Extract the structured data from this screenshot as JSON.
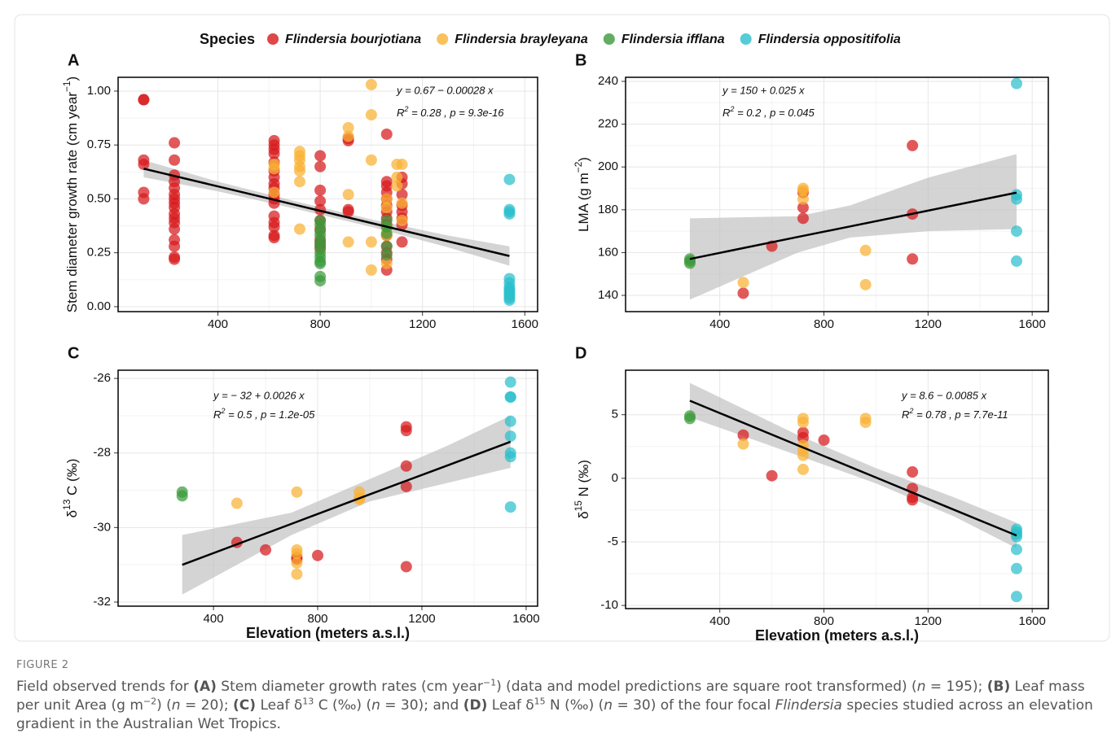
{
  "chart_data": [
    {
      "type": "scatter",
      "panel": "A",
      "legend_title": "Species",
      "ylabel": [
        "Stem diameter growth rate (cm year",
        "−1",
        ")"
      ],
      "equation": "y = 0.67 − 0.00028 x",
      "r2": [
        "R",
        "2",
        " = 0.28 , p = 9.3e-16"
      ],
      "xlim": [
        10,
        1650
      ],
      "ylim": [
        -0.023,
        1.064
      ],
      "xticks": [
        400,
        800,
        1200,
        1600
      ],
      "yticks": [
        {
          "value": 0,
          "label": "0.00"
        },
        {
          "value": 0.25,
          "label": "0.25"
        },
        {
          "value": 0.5,
          "label": "0.50"
        },
        {
          "value": 0.75,
          "label": "0.75"
        },
        {
          "value": 1,
          "label": "1.00"
        }
      ],
      "grid": true,
      "series": [
        {
          "name": "Flindersia bourjotiana",
          "color": "#d7191c",
          "x": [
            110,
            110,
            110,
            110,
            110,
            110,
            230,
            230,
            230,
            230,
            230,
            230,
            230,
            230,
            230,
            230,
            230,
            230,
            230,
            230,
            230,
            230,
            230,
            620,
            620,
            620,
            620,
            620,
            620,
            620,
            620,
            620,
            620,
            620,
            620,
            620,
            620,
            620,
            620,
            620,
            800,
            800,
            800,
            800,
            800,
            800,
            800,
            800,
            800,
            800,
            910,
            910,
            910,
            910,
            1060,
            1060,
            1060,
            1060,
            1060,
            1060,
            1060,
            1060,
            1060,
            1060,
            1060,
            1060,
            1060,
            1060,
            1120,
            1120,
            1120,
            1120,
            1120,
            1120,
            1120,
            1120
          ],
          "values": [
            0.96,
            0.96,
            0.68,
            0.66,
            0.53,
            0.5,
            0.76,
            0.68,
            0.61,
            0.58,
            0.55,
            0.52,
            0.5,
            0.48,
            0.46,
            0.43,
            0.41,
            0.39,
            0.36,
            0.31,
            0.28,
            0.23,
            0.22,
            0.77,
            0.75,
            0.73,
            0.71,
            0.67,
            0.63,
            0.6,
            0.57,
            0.55,
            0.52,
            0.5,
            0.48,
            0.42,
            0.39,
            0.37,
            0.33,
            0.32,
            0.7,
            0.65,
            0.54,
            0.49,
            0.45,
            0.4,
            0.36,
            0.31,
            0.29,
            0.27,
            0.77,
            0.78,
            0.45,
            0.44,
            0.8,
            0.58,
            0.56,
            0.53,
            0.5,
            0.47,
            0.44,
            0.41,
            0.38,
            0.33,
            0.28,
            0.25,
            0.22,
            0.17,
            0.6,
            0.57,
            0.52,
            0.47,
            0.44,
            0.41,
            0.38,
            0.3
          ]
        },
        {
          "name": "Flindersia brayleyana",
          "color": "#f9b233",
          "x": [
            620,
            620,
            620,
            720,
            720,
            720,
            720,
            720,
            720,
            720,
            910,
            910,
            910,
            910,
            1000,
            1000,
            1000,
            1000,
            1000,
            1060,
            1060,
            1060,
            1060,
            1060,
            1100,
            1100,
            1100,
            1120,
            1120,
            1120
          ],
          "values": [
            0.66,
            0.64,
            0.53,
            0.72,
            0.7,
            0.68,
            0.65,
            0.63,
            0.58,
            0.36,
            0.83,
            0.79,
            0.52,
            0.3,
            1.03,
            0.89,
            0.68,
            0.3,
            0.17,
            0.5,
            0.46,
            0.37,
            0.33,
            0.2,
            0.66,
            0.6,
            0.56,
            0.66,
            0.48,
            0.4
          ]
        },
        {
          "name": "Flindersia ifflana",
          "color": "#3a9a3a",
          "x": [
            800,
            800,
            800,
            800,
            800,
            800,
            800,
            800,
            800,
            800,
            800,
            800,
            1060,
            1060,
            1060,
            1060,
            1060
          ],
          "values": [
            0.4,
            0.38,
            0.35,
            0.33,
            0.3,
            0.28,
            0.25,
            0.23,
            0.21,
            0.2,
            0.14,
            0.12,
            0.4,
            0.37,
            0.34,
            0.28,
            0.24
          ]
        },
        {
          "name": "Flindersia oppositifolia",
          "color": "#2bbfcc",
          "x": [
            1540,
            1540,
            1540,
            1540,
            1540,
            1540,
            1540,
            1540,
            1540,
            1540,
            1540,
            1540,
            1540
          ],
          "values": [
            0.59,
            0.45,
            0.44,
            0.43,
            0.13,
            0.11,
            0.09,
            0.08,
            0.07,
            0.06,
            0.05,
            0.04,
            0.03
          ]
        }
      ],
      "fit": {
        "x": [
          110,
          400,
          700,
          1000,
          1300,
          1540
        ],
        "y": [
          0.64,
          0.558,
          0.473,
          0.388,
          0.303,
          0.235
        ],
        "lower": [
          0.6,
          0.535,
          0.455,
          0.37,
          0.275,
          0.19
        ],
        "upper": [
          0.68,
          0.58,
          0.49,
          0.405,
          0.33,
          0.28
        ]
      }
    },
    {
      "type": "scatter",
      "panel": "B",
      "ylabel": [
        "LMA (g m",
        "−2",
        ")"
      ],
      "equation": "y = 150 + 0.025 x",
      "r2": [
        "R",
        "2",
        " = 0.2 , p = 0.045"
      ],
      "xlim": [
        38,
        1662
      ],
      "ylim": [
        132.4,
        241.9
      ],
      "xticks": [
        400,
        800,
        1200,
        1600
      ],
      "yticks": [
        140,
        160,
        180,
        200,
        220,
        240
      ],
      "grid": true,
      "series": [
        {
          "color": "#d7191c",
          "x": [
            490,
            600,
            720,
            720,
            720,
            1140,
            1140,
            1140
          ],
          "values": [
            141,
            163,
            188,
            181,
            176,
            210,
            178,
            157
          ]
        },
        {
          "color": "#f9b233",
          "x": [
            490,
            720,
            720,
            720,
            960,
            960
          ],
          "values": [
            146,
            190,
            189,
            185,
            161,
            145
          ]
        },
        {
          "color": "#3a9a3a",
          "x": [
            285,
            285,
            285
          ],
          "values": [
            157,
            156,
            155
          ]
        },
        {
          "color": "#2bbfcc",
          "x": [
            1540,
            1540,
            1540,
            1540,
            1540
          ],
          "values": [
            239,
            187,
            185,
            170,
            156
          ]
        }
      ],
      "fit": {
        "x": [
          285,
          700,
          900,
          1200,
          1540
        ],
        "y": [
          157,
          167.3,
          172.2,
          179.6,
          188
        ],
        "lower": [
          138,
          160,
          167,
          170,
          171
        ],
        "upper": [
          176,
          177,
          182,
          195,
          206
        ]
      }
    },
    {
      "type": "scatter",
      "panel": "C",
      "ylabel": [
        "δ",
        "13",
        " C (‰)"
      ],
      "xlabel": "Elevation (meters a.s.l.)",
      "equation": "y = − 32 + 0.0026 x",
      "r2": [
        "R",
        "2",
        " = 0.5 , p = 1.2e-05"
      ],
      "xlim": [
        34,
        1644
      ],
      "ylim": [
        -32.11,
        -25.78
      ],
      "xticks": [
        400,
        800,
        1200,
        1600
      ],
      "yticks": [
        -32,
        -30,
        -28,
        -26
      ],
      "grid": true,
      "series": [
        {
          "color": "#d7191c",
          "x": [
            490,
            600,
            720,
            720,
            800,
            1140,
            1140,
            1140,
            1140,
            1140
          ],
          "values": [
            -30.4,
            -30.6,
            -30.8,
            -30.85,
            -30.75,
            -27.3,
            -27.4,
            -28.35,
            -28.9,
            -31.05
          ]
        },
        {
          "color": "#f9b233",
          "x": [
            490,
            720,
            720,
            720,
            720,
            720,
            960,
            960,
            960
          ],
          "values": [
            -29.35,
            -29.05,
            -30.6,
            -30.7,
            -30.95,
            -31.25,
            -29.05,
            -29.2,
            -29.25
          ]
        },
        {
          "color": "#3a9a3a",
          "x": [
            280,
            280
          ],
          "values": [
            -29.05,
            -29.15
          ]
        },
        {
          "color": "#2bbfcc",
          "x": [
            1540,
            1540,
            1540,
            1540,
            1540,
            1540,
            1540,
            1540
          ],
          "values": [
            -26.1,
            -26.5,
            -26.5,
            -27.15,
            -27.55,
            -28.0,
            -28.1,
            -29.45
          ]
        }
      ],
      "fit": {
        "x": [
          280,
          700,
          1000,
          1300,
          1540
        ],
        "y": [
          -31.0,
          -29.9,
          -29.11,
          -28.33,
          -27.7
        ],
        "lower": [
          -31.8,
          -30.2,
          -29.3,
          -28.8,
          -28.4
        ],
        "upper": [
          -30.2,
          -29.6,
          -28.7,
          -27.8,
          -27.0
        ]
      }
    },
    {
      "type": "scatter",
      "panel": "D",
      "ylabel": [
        "δ",
        "15",
        " N (‰)"
      ],
      "xlabel": "Elevation (meters a.s.l.)",
      "equation": "y = 8.6 − 0.0085 x",
      "r2": [
        "R",
        "2",
        " = 0.78 , p = 7.7e-11"
      ],
      "xlim": [
        38,
        1662
      ],
      "ylim": [
        -10.25,
        8.5
      ],
      "xticks": [
        400,
        800,
        1200,
        1600
      ],
      "yticks": [
        -10,
        -5,
        0,
        5
      ],
      "grid": true,
      "series": [
        {
          "color": "#d7191c",
          "x": [
            490,
            600,
            720,
            720,
            800,
            1140,
            1140,
            1140,
            1140
          ],
          "values": [
            3.4,
            0.2,
            3.6,
            3.2,
            3.0,
            0.5,
            -0.8,
            -1.5,
            -1.7
          ]
        },
        {
          "color": "#f9b233",
          "x": [
            490,
            720,
            720,
            720,
            720,
            720,
            720,
            960,
            960
          ],
          "values": [
            2.7,
            4.7,
            4.4,
            2.6,
            2.2,
            1.8,
            0.7,
            4.7,
            4.4
          ]
        },
        {
          "color": "#3a9a3a",
          "x": [
            285,
            285
          ],
          "values": [
            4.9,
            4.7
          ]
        },
        {
          "color": "#2bbfcc",
          "x": [
            1540,
            1540,
            1540,
            1540,
            1540,
            1540,
            1540
          ],
          "values": [
            -4.0,
            -4.2,
            -4.4,
            -4.6,
            -5.6,
            -7.1,
            -9.3
          ]
        }
      ],
      "fit": {
        "x": [
          285,
          700,
          1000,
          1300,
          1540
        ],
        "y": [
          6.1,
          2.59,
          0.06,
          -2.48,
          -4.5
        ],
        "lower": [
          4.8,
          1.8,
          -0.4,
          -3.0,
          -5.5
        ],
        "upper": [
          7.5,
          3.4,
          0.8,
          -1.5,
          -3.5
        ]
      }
    }
  ],
  "caption": {
    "label": "FIGURE 2",
    "parts": [
      {
        "text": "Field observed trends for "
      },
      {
        "text": "(A)",
        "style": "bold"
      },
      {
        "text": " Stem diameter growth rates (cm year"
      },
      {
        "text": "−1",
        "style": "sup"
      },
      {
        "text": ") (data and model predictions are square root transformed) ("
      },
      {
        "text": "n",
        "style": "italic"
      },
      {
        "text": " = 195); "
      },
      {
        "text": "(B)",
        "style": "bold"
      },
      {
        "text": " Leaf mass per unit Area (g m"
      },
      {
        "text": "−2",
        "style": "sup"
      },
      {
        "text": ") ("
      },
      {
        "text": "n",
        "style": "italic"
      },
      {
        "text": " = 20); "
      },
      {
        "text": "(C)",
        "style": "bold"
      },
      {
        "text": " Leaf δ"
      },
      {
        "text": "13",
        "style": "sup"
      },
      {
        "text": " C (‰) ("
      },
      {
        "text": "n",
        "style": "italic"
      },
      {
        "text": " = 30); and "
      },
      {
        "text": "(D)",
        "style": "bold"
      },
      {
        "text": " Leaf δ"
      },
      {
        "text": "15",
        "style": "sup"
      },
      {
        "text": " N (‰) ("
      },
      {
        "text": "n",
        "style": "italic"
      },
      {
        "text": " = 30) of the four focal "
      },
      {
        "text": "Flindersia",
        "style": "italic"
      },
      {
        "text": " species studied across an elevation gradient in the Australian Wet Tropics."
      }
    ]
  }
}
